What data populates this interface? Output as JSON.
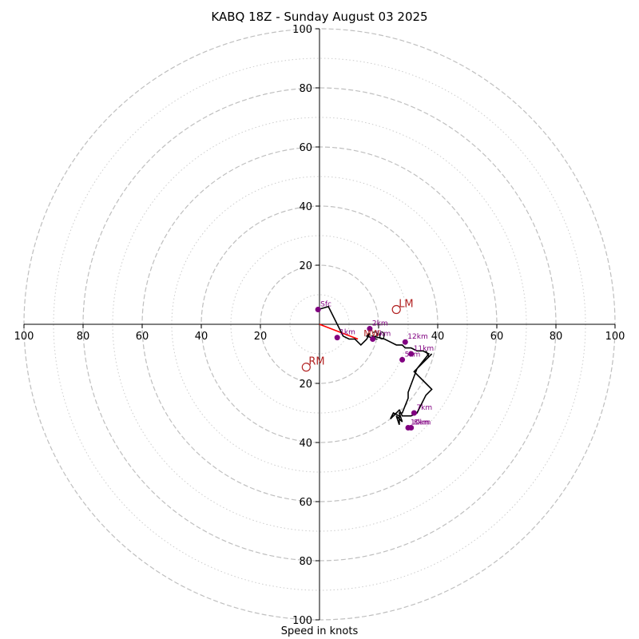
{
  "chart_data": {
    "type": "hodograph",
    "title": "KABQ 18Z - Sunday August 03 2025",
    "xlabel": "Speed in knots",
    "units": "knots",
    "ring_max": 100,
    "major_rings": [
      20,
      40,
      60,
      80,
      100
    ],
    "minor_rings": [
      10,
      30,
      50,
      70,
      90
    ],
    "ticks": [
      20,
      40,
      60,
      80,
      100
    ],
    "axis_tick_labels": {
      "x_left": [
        "100",
        "80",
        "60",
        "40",
        "20"
      ],
      "x_right": [
        "20",
        "40",
        "60",
        "80",
        "100"
      ],
      "y_up": [
        "20",
        "40",
        "60",
        "80",
        "100"
      ],
      "y_down": [
        "20",
        "40",
        "60",
        "80",
        "100"
      ]
    },
    "grid": true,
    "colors": {
      "profile": "#000000",
      "markers": "#800080",
      "storm_motion": "#b22222",
      "shear_vector": "#ff0000",
      "major_grid": "#bfbfbf",
      "minor_grid": "#cccccc"
    },
    "profile": {
      "name": "wind profile",
      "u": [
        -0.5,
        3,
        6,
        8,
        10,
        12,
        14,
        16,
        17,
        16,
        19,
        18,
        22,
        24,
        26,
        28,
        29,
        31,
        33,
        35,
        37,
        33,
        30,
        30,
        28,
        27,
        28,
        26,
        27,
        27,
        25,
        24,
        27,
        28,
        31,
        33,
        36,
        38,
        36,
        32,
        34,
        38,
        37,
        36
      ],
      "v": [
        5,
        6,
        0,
        -4,
        -5,
        -5,
        -7,
        -5,
        -3,
        -4,
        -5,
        -4,
        -5,
        -6,
        -7,
        -7,
        -8,
        -8,
        -9,
        -9,
        -10,
        -15,
        -23,
        -25,
        -30,
        -30,
        -33,
        -31,
        -34,
        -31,
        -30,
        -32,
        -29,
        -31,
        -31,
        -30,
        -24,
        -22,
        -20,
        -16,
        -14,
        -10,
        -11,
        -9
      ]
    },
    "height_markers": [
      {
        "label": "Sfc",
        "u": -0.5,
        "v": 5
      },
      {
        "label": "1km",
        "u": 6,
        "v": -4.5
      },
      {
        "label": "2km",
        "u": 17,
        "v": -1.5
      },
      {
        "label": "3km",
        "u": 18,
        "v": -5
      },
      {
        "label": "5km",
        "u": 28,
        "v": -12
      },
      {
        "label": "7km",
        "u": 32,
        "v": -30
      },
      {
        "label": "8km",
        "u": 31,
        "v": -35
      },
      {
        "label": "10km",
        "u": 30,
        "v": -35
      },
      {
        "label": "11km",
        "u": 31,
        "v": -10
      },
      {
        "label": "12km",
        "u": 29,
        "v": -6
      }
    ],
    "storm_motion": [
      {
        "label": "LM",
        "u": 26,
        "v": 5
      },
      {
        "label": "RM",
        "u": -4.5,
        "v": -14.5
      }
    ],
    "mean_wind": {
      "label": "MW",
      "u": 16,
      "v": -3
    },
    "shear_vector": {
      "from_u": 0,
      "from_v": 0,
      "to_u": 13,
      "to_v": -5
    }
  }
}
